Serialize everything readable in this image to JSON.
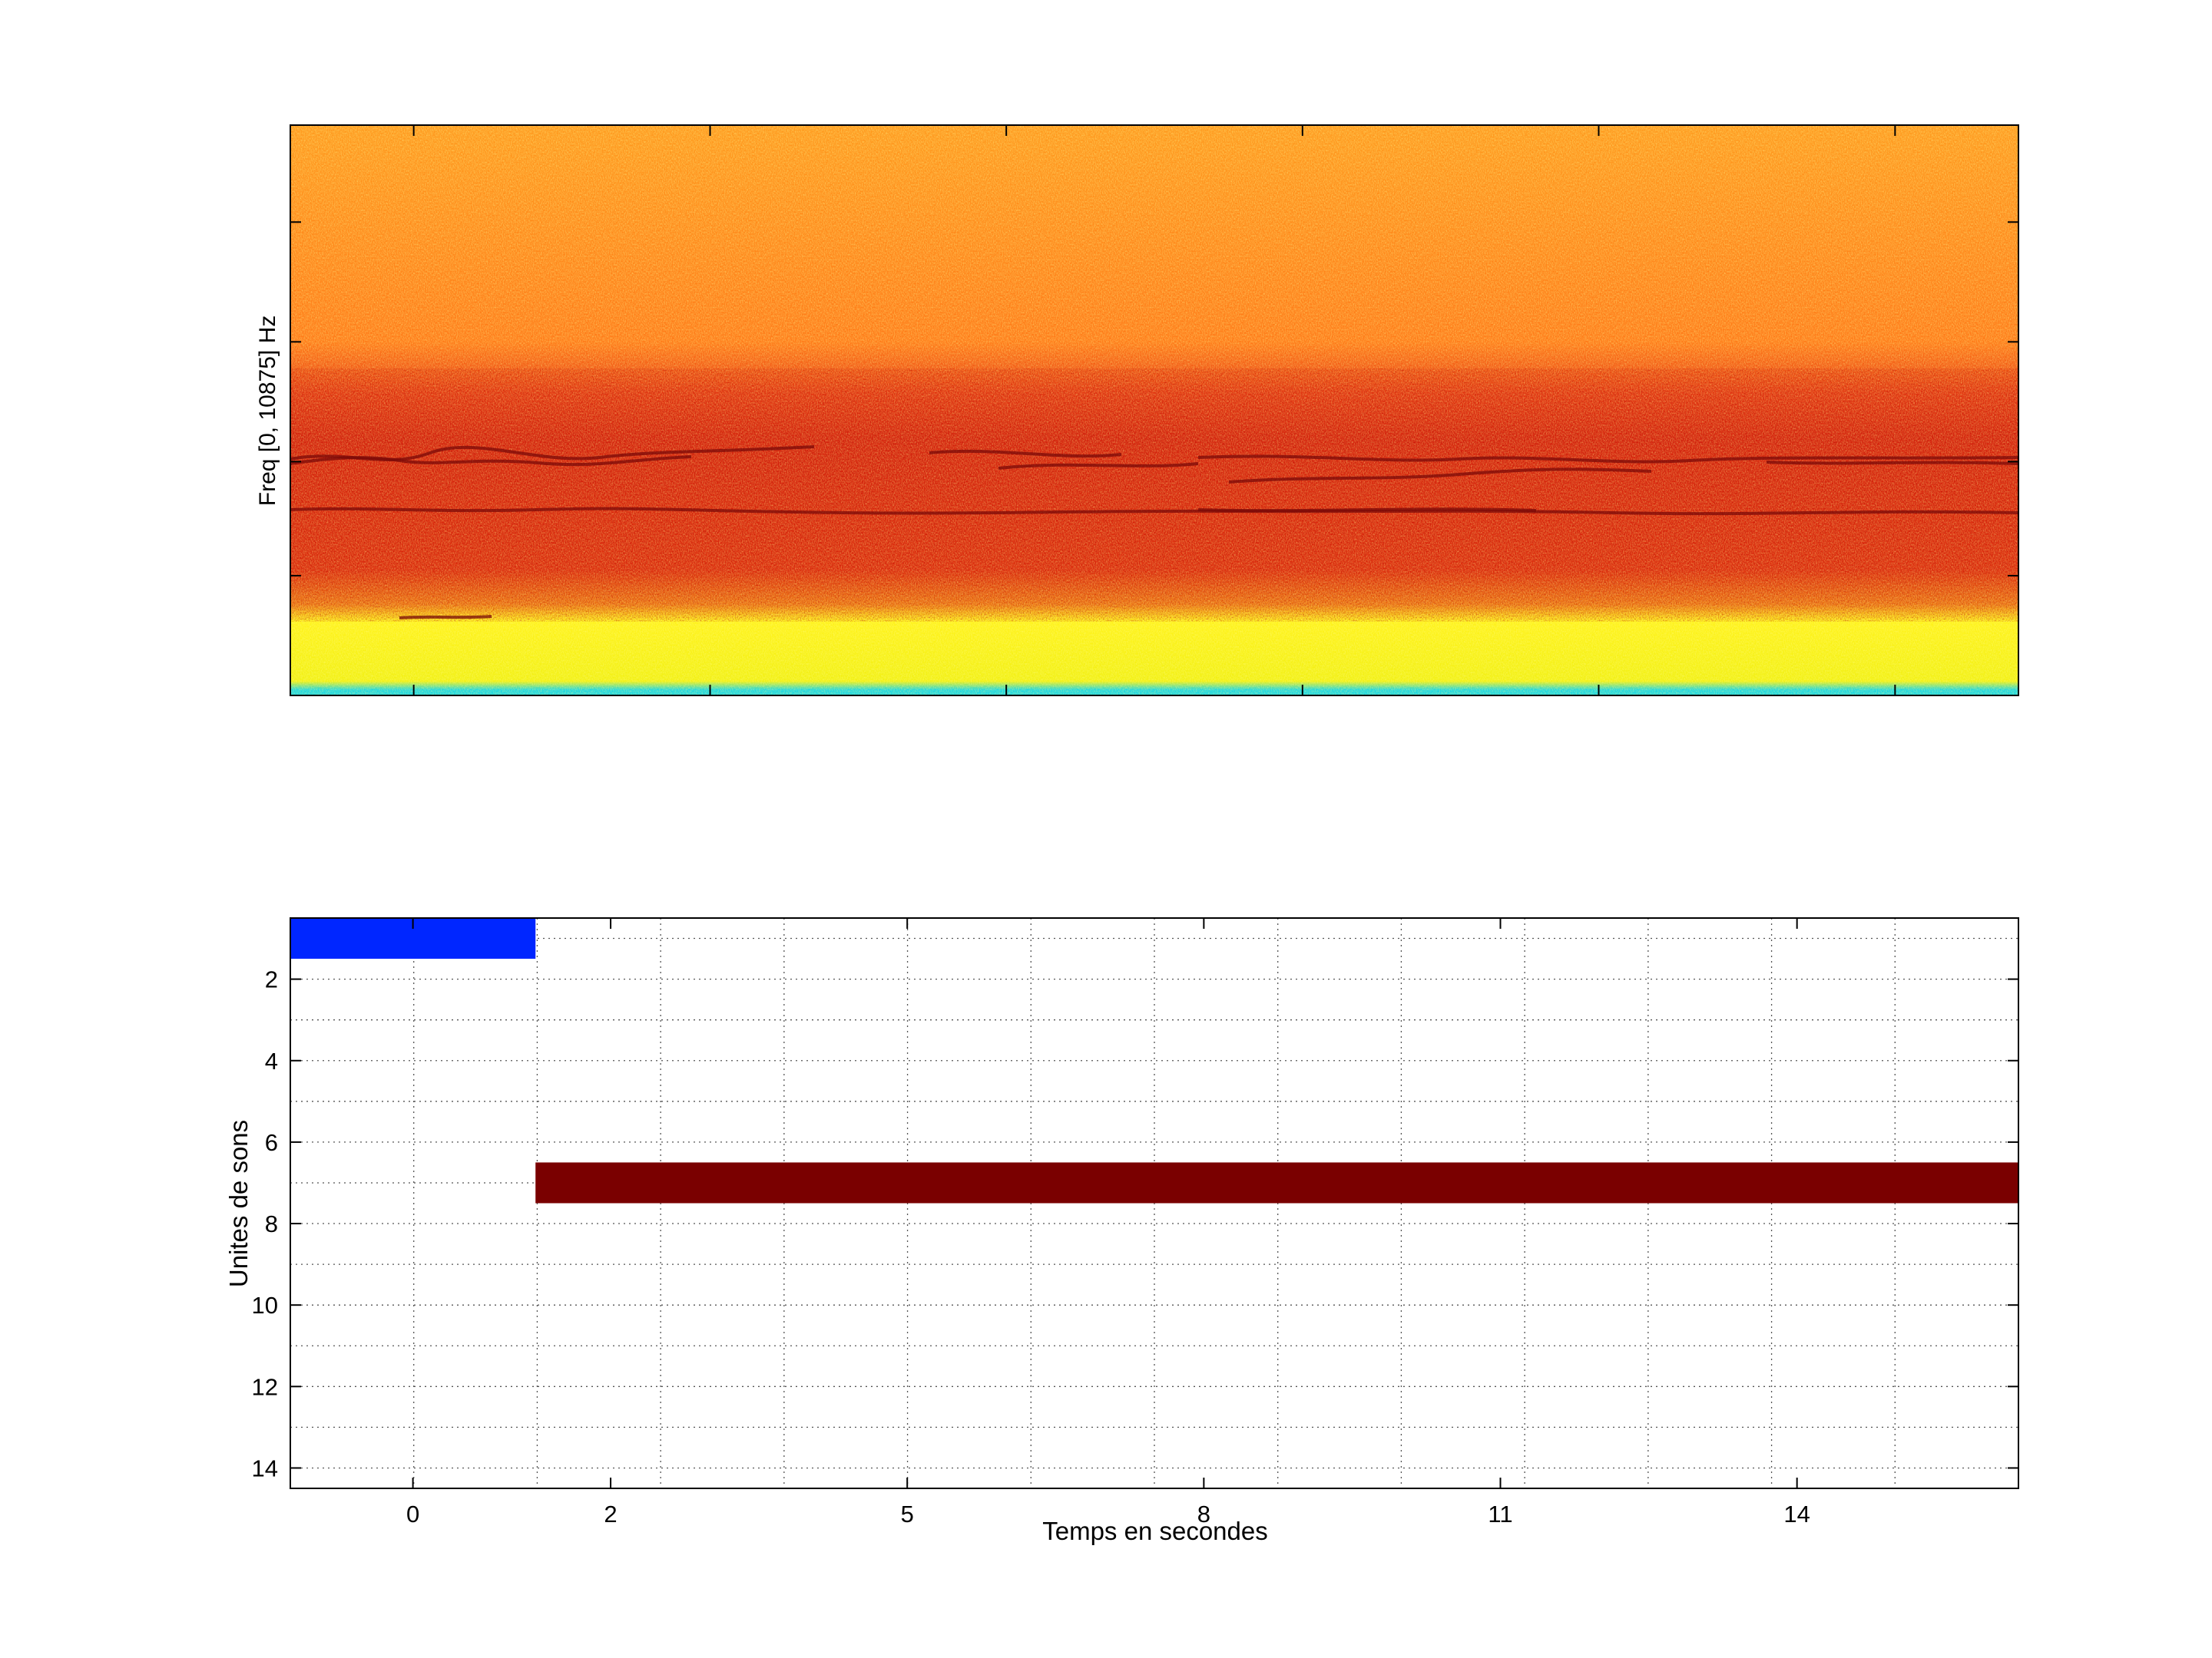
{
  "chart_data": [
    {
      "type": "heatmap",
      "title": "",
      "xlabel": "",
      "ylabel": "Freq [0, 10875] Hz",
      "ylim": [
        0,
        10875
      ],
      "colormap": "jet (upper range: yellow-orange-red-dark red)",
      "bands": [
        {
          "description": "harmonic band (dark red)",
          "freq_fraction_from_bottom": [
            0.2,
            0.5
          ]
        },
        {
          "description": "low-frequency band (yellow)",
          "freq_fraction_from_bottom": [
            0.0,
            0.12
          ]
        },
        {
          "description": "DC row (cyan)",
          "freq_fraction_from_bottom": [
            0.0,
            0.01
          ]
        }
      ],
      "colors": {
        "low": "#1fd8e0",
        "mid": "#ffff00",
        "high": "#ff8c1a",
        "band": "#e22a10",
        "ridge": "#7a0a08"
      }
    },
    {
      "type": "bar",
      "orientation": "horizontal",
      "title": "",
      "xlabel": "Temps en secondes",
      "ylabel": "Unites de sons",
      "x_ticks": [
        0,
        2,
        5,
        8,
        11,
        14
      ],
      "x_tick_labels": [
        "0",
        "2",
        "5",
        "8",
        "11",
        "14"
      ],
      "xlim": [
        -1.24,
        16.24
      ],
      "y_ticks": [
        2,
        4,
        6,
        8,
        10,
        12,
        14
      ],
      "y_tick_labels": [
        "2",
        "4",
        "6",
        "8",
        "10",
        "12",
        "14"
      ],
      "ylim": [
        0.5,
        14.5
      ],
      "y_reversed": true,
      "grid": true,
      "segments": [
        {
          "unit": 1,
          "start": -1.24,
          "end": 1.24,
          "color": "#0026ff"
        },
        {
          "unit": 7,
          "start": 1.24,
          "end": 16.24,
          "color": "#7a0000"
        }
      ]
    }
  ]
}
